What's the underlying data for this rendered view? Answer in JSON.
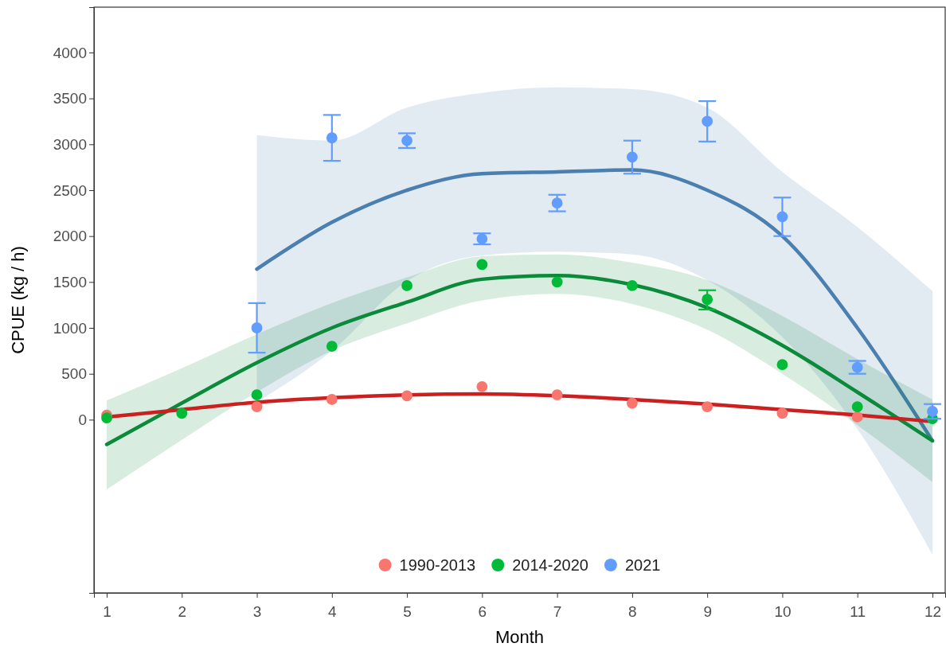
{
  "chart_data": {
    "type": "scatter",
    "xlabel": "Month",
    "ylabel": "CPUE (kg / h)",
    "xlim": [
      0.83,
      12.17
    ],
    "ylim": [
      -1887,
      4494
    ],
    "xticks": [
      1,
      2,
      3,
      4,
      5,
      6,
      7,
      8,
      9,
      10,
      11,
      12
    ],
    "yticks": [
      0,
      500,
      1000,
      1500,
      2000,
      2500,
      3000,
      3500,
      4000
    ],
    "grid": false,
    "legend": "bottom",
    "marker": "circle",
    "series": [
      {
        "type": "line",
        "color": "#4a7fb0",
        "x": [
          3,
          4,
          5,
          6,
          7,
          8,
          9,
          10,
          11,
          12
        ],
        "values": [
          1640,
          2150,
          2500,
          2680,
          2700,
          2720,
          2500,
          2000,
          1000,
          -230
        ],
        "lower": [
          190,
          750,
          1510,
          1790,
          1830,
          1800,
          1520,
          900,
          -100,
          -1470
        ],
        "upper": [
          3100,
          3040,
          3400,
          3560,
          3620,
          3600,
          3400,
          2700,
          2100,
          1400
        ],
        "marker": "none"
      },
      {
        "type": "line",
        "color": "#0a8a3a",
        "x": [
          1,
          2,
          3,
          4,
          5,
          6,
          7,
          8,
          9,
          10,
          11,
          12
        ],
        "values": [
          -270,
          180,
          620,
          1000,
          1280,
          1530,
          1570,
          1470,
          1220,
          810,
          300,
          -230
        ],
        "lower": [
          -760,
          -220,
          300,
          750,
          1050,
          1300,
          1370,
          1260,
          980,
          500,
          -60,
          -680
        ],
        "upper": [
          210,
          560,
          930,
          1270,
          1550,
          1780,
          1800,
          1710,
          1520,
          1130,
          660,
          220
        ],
        "marker": "none"
      },
      {
        "type": "line",
        "color": "#cc1f1f",
        "x": [
          1,
          2,
          3,
          4,
          5,
          6,
          7,
          8,
          9,
          10,
          11,
          12
        ],
        "values": [
          30,
          110,
          190,
          240,
          270,
          280,
          260,
          220,
          170,
          110,
          50,
          -20
        ],
        "marker": "none"
      },
      {
        "name": "1990-2013",
        "color": "#f8766d",
        "x": [
          1,
          2,
          3,
          4,
          5,
          6,
          7,
          8,
          9,
          10,
          11
        ],
        "values": [
          50,
          null,
          140,
          220,
          260,
          360,
          270,
          180,
          140,
          70,
          30
        ]
      },
      {
        "name": "2014-2020",
        "color": "#00ba38",
        "x": [
          1,
          2,
          3,
          4,
          5,
          6,
          7,
          8,
          9,
          10,
          11,
          12
        ],
        "values": [
          20,
          70,
          270,
          800,
          1460,
          1690,
          1500,
          1460,
          1310,
          600,
          140,
          10
        ],
        "errors": [
          null,
          null,
          null,
          null,
          null,
          null,
          null,
          null,
          [
            1200,
            1410
          ],
          null,
          null,
          null
        ]
      },
      {
        "name": "2021",
        "color": "#619cff",
        "x": [
          3,
          4,
          5,
          6,
          7,
          8,
          9,
          10,
          11,
          12
        ],
        "values": [
          1000,
          3070,
          3040,
          1970,
          2360,
          2860,
          3250,
          2210,
          570,
          90
        ],
        "errors": [
          [
            730,
            1270
          ],
          [
            2820,
            3320
          ],
          [
            2960,
            3120
          ],
          [
            1910,
            2030
          ],
          [
            2270,
            2450
          ],
          [
            2680,
            3040
          ],
          [
            3030,
            3470
          ],
          [
            2000,
            2420
          ],
          [
            500,
            640
          ],
          [
            10,
            170
          ]
        ]
      }
    ]
  }
}
